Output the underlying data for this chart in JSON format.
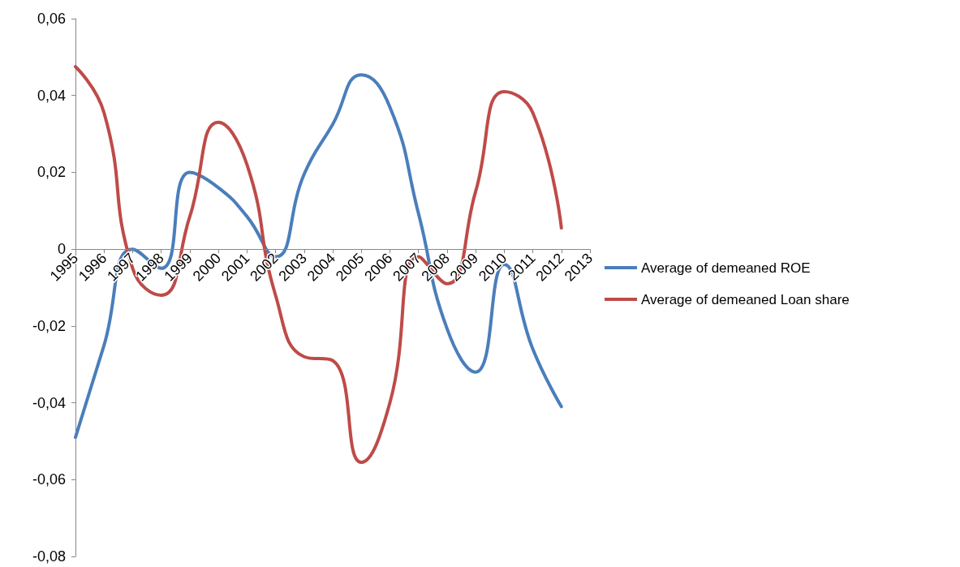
{
  "chart_data": {
    "type": "line",
    "categories": [
      "1995",
      "1996",
      "1997",
      "1998",
      "1999",
      "2000",
      "2001",
      "2002",
      "2003",
      "2004",
      "2005",
      "2006",
      "2007",
      "2008",
      "2009",
      "2010",
      "2011",
      "2012",
      "2013"
    ],
    "series": [
      {
        "name": "Average of demeaned ROE",
        "color": "#4a7ebb",
        "values": [
          -0.049,
          -0.025,
          0,
          -0.005,
          0.02,
          0.016,
          0.0085,
          -0.002,
          0.0195,
          0.0325,
          0.0454,
          0.037,
          0.0093,
          -0.0207,
          -0.032,
          -0.004,
          -0.026,
          -0.041,
          null
        ]
      },
      {
        "name": "Average of demeaned Loan share",
        "color": "#be4b48",
        "values": [
          0.0475,
          0.0355,
          -0.005,
          -0.012,
          0.0085,
          0.033,
          0.022,
          -0.012,
          -0.028,
          -0.029,
          -0.0555,
          -0.04,
          -0.002,
          -0.009,
          0.015,
          0.041,
          0.0355,
          0.0055,
          null
        ]
      }
    ],
    "ylim": [
      -0.08,
      0.06
    ],
    "yticks": [
      {
        "value": -0.08,
        "label": "-0,08"
      },
      {
        "value": -0.06,
        "label": "-0,06"
      },
      {
        "value": -0.04,
        "label": "-0,04"
      },
      {
        "value": -0.02,
        "label": "-0,02"
      },
      {
        "value": 0,
        "label": "0"
      },
      {
        "value": 0.02,
        "label": "0,02"
      },
      {
        "value": 0.04,
        "label": "0,04"
      },
      {
        "value": 0.06,
        "label": "0,06"
      }
    ],
    "legend": "right",
    "marker": "none",
    "line_style": "solid"
  }
}
